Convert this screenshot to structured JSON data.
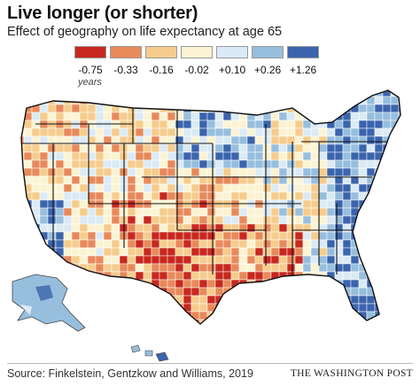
{
  "header": {
    "title": "Live longer (or shorter)",
    "subtitle": "Effect of geography on life expectancy at age 65"
  },
  "legend": {
    "unit": "years",
    "bins": [
      {
        "label": "-0.75",
        "color": "#c8281e"
      },
      {
        "label": "-0.33",
        "color": "#e8895a"
      },
      {
        "label": "-0.16",
        "color": "#f6cc8d"
      },
      {
        "label": "-0.02",
        "color": "#fbf3d3"
      },
      {
        "label": "+0.10",
        "color": "#dbeaf4"
      },
      {
        "label": "+0.26",
        "color": "#97bedd"
      },
      {
        "label": "+1.26",
        "color": "#3b64ad"
      }
    ]
  },
  "map": {
    "region": "United States (contiguous), Alaska, Hawaii",
    "measure": "Effect of geography on life expectancy at age 65"
  },
  "footer": {
    "source": "Source: Finkelstein, Gentzkow and Williams, 2019",
    "credit": "THE WASHINGTON POST"
  }
}
